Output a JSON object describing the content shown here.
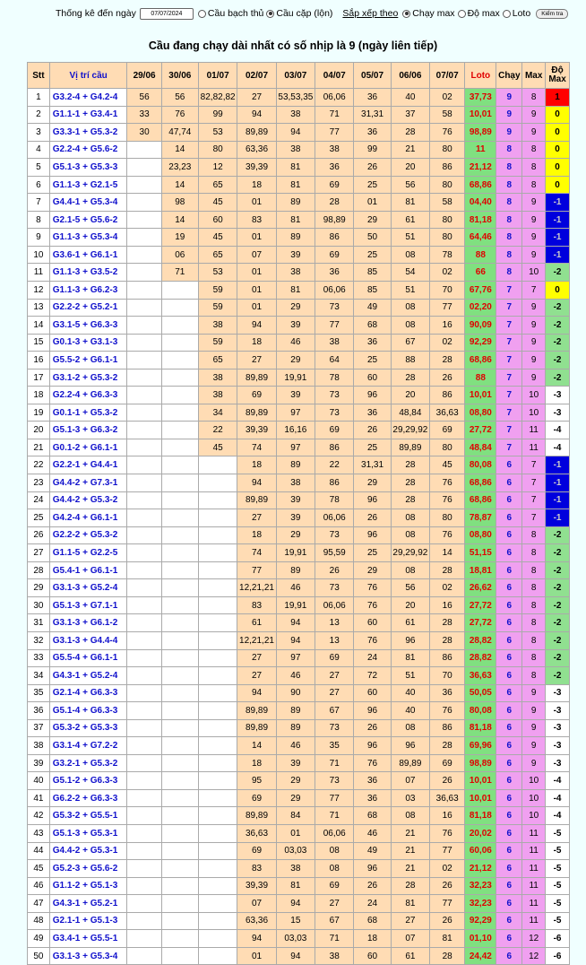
{
  "filter": {
    "label": "Thống kê đến ngày",
    "date": "07/07/2024",
    "mode_options": [
      {
        "label": "Cầu bạch thủ",
        "selected": false
      },
      {
        "label": "Cầu cặp (lộn)",
        "selected": true
      }
    ],
    "sort_label": "Sắp xếp theo",
    "sort_options": [
      {
        "label": "Chạy max",
        "selected": true
      },
      {
        "label": "Độ max",
        "selected": false
      },
      {
        "label": "Loto",
        "selected": false
      }
    ],
    "check_button": "Kiểm tra"
  },
  "title": "Cầu đang chạy dài nhất có số nhịp là 9 (ngày liên tiếp)",
  "headers": [
    "Stt",
    "Vị trí cầu",
    "29/06",
    "30/06",
    "01/07",
    "02/07",
    "03/07",
    "04/07",
    "05/07",
    "06/06",
    "07/07",
    "Loto",
    "Chạy",
    "Max",
    "Độ Max"
  ],
  "rows": [
    {
      "stt": "1",
      "pos": "G3.2-4 + G4.2-4",
      "d": [
        "56",
        "56",
        "82,82,82",
        "27",
        "53,53,35",
        "06,06",
        "36",
        "40",
        "02"
      ],
      "loto": "37,73",
      "chay": "9",
      "max": "8",
      "do": "1"
    },
    {
      "stt": "2",
      "pos": "G1.1-1 + G3.4-1",
      "d": [
        "33",
        "76",
        "99",
        "94",
        "38",
        "71",
        "31,31",
        "37",
        "58"
      ],
      "loto": "10,01",
      "chay": "9",
      "max": "9",
      "do": "0"
    },
    {
      "stt": "3",
      "pos": "G3.3-1 + G5.3-2",
      "d": [
        "30",
        "47,74",
        "53",
        "89,89",
        "94",
        "77",
        "36",
        "28",
        "76"
      ],
      "loto": "98,89",
      "chay": "9",
      "max": "9",
      "do": "0"
    },
    {
      "stt": "4",
      "pos": "G2.2-4 + G5.6-2",
      "d": [
        "",
        "14",
        "80",
        "63,36",
        "38",
        "38",
        "99",
        "21",
        "80"
      ],
      "loto": "11",
      "chay": "8",
      "max": "8",
      "do": "0"
    },
    {
      "stt": "5",
      "pos": "G5.1-3 + G5.3-3",
      "d": [
        "",
        "23,23",
        "12",
        "39,39",
        "81",
        "36",
        "26",
        "20",
        "86"
      ],
      "loto": "21,12",
      "chay": "8",
      "max": "8",
      "do": "0"
    },
    {
      "stt": "6",
      "pos": "G1.1-3 + G2.1-5",
      "d": [
        "",
        "14",
        "65",
        "18",
        "81",
        "69",
        "25",
        "56",
        "80"
      ],
      "loto": "68,86",
      "chay": "8",
      "max": "8",
      "do": "0"
    },
    {
      "stt": "7",
      "pos": "G4.4-1 + G5.3-4",
      "d": [
        "",
        "98",
        "45",
        "01",
        "89",
        "28",
        "01",
        "81",
        "58"
      ],
      "loto": "04,40",
      "chay": "8",
      "max": "9",
      "do": "-1"
    },
    {
      "stt": "8",
      "pos": "G2.1-5 + G5.6-2",
      "d": [
        "",
        "14",
        "60",
        "83",
        "81",
        "98,89",
        "29",
        "61",
        "80"
      ],
      "loto": "81,18",
      "chay": "8",
      "max": "9",
      "do": "-1"
    },
    {
      "stt": "9",
      "pos": "G1.1-3 + G5.3-4",
      "d": [
        "",
        "19",
        "45",
        "01",
        "89",
        "86",
        "50",
        "51",
        "80"
      ],
      "loto": "64,46",
      "chay": "8",
      "max": "9",
      "do": "-1"
    },
    {
      "stt": "10",
      "pos": "G3.6-1 + G6.1-1",
      "d": [
        "",
        "06",
        "65",
        "07",
        "39",
        "69",
        "25",
        "08",
        "78"
      ],
      "loto": "88",
      "chay": "8",
      "max": "9",
      "do": "-1"
    },
    {
      "stt": "11",
      "pos": "G1.1-3 + G3.5-2",
      "d": [
        "",
        "71",
        "53",
        "01",
        "38",
        "36",
        "85",
        "54",
        "02"
      ],
      "loto": "66",
      "chay": "8",
      "max": "10",
      "do": "-2"
    },
    {
      "stt": "12",
      "pos": "G1.1-3 + G6.2-3",
      "d": [
        "",
        "",
        "59",
        "01",
        "81",
        "06,06",
        "85",
        "51",
        "70"
      ],
      "loto": "67,76",
      "chay": "7",
      "max": "7",
      "do": "0"
    },
    {
      "stt": "13",
      "pos": "G2.2-2 + G5.2-1",
      "d": [
        "",
        "",
        "59",
        "01",
        "29",
        "73",
        "49",
        "08",
        "77"
      ],
      "loto": "02,20",
      "chay": "7",
      "max": "9",
      "do": "-2"
    },
    {
      "stt": "14",
      "pos": "G3.1-5 + G6.3-3",
      "d": [
        "",
        "",
        "38",
        "94",
        "39",
        "77",
        "68",
        "08",
        "16"
      ],
      "loto": "90,09",
      "chay": "7",
      "max": "9",
      "do": "-2"
    },
    {
      "stt": "15",
      "pos": "G0.1-3 + G3.1-3",
      "d": [
        "",
        "",
        "59",
        "18",
        "46",
        "38",
        "36",
        "67",
        "02"
      ],
      "loto": "92,29",
      "chay": "7",
      "max": "9",
      "do": "-2"
    },
    {
      "stt": "16",
      "pos": "G5.5-2 + G6.1-1",
      "d": [
        "",
        "",
        "65",
        "27",
        "29",
        "64",
        "25",
        "88",
        "28"
      ],
      "loto": "68,86",
      "chay": "7",
      "max": "9",
      "do": "-2"
    },
    {
      "stt": "17",
      "pos": "G3.1-2 + G5.3-2",
      "d": [
        "",
        "",
        "38",
        "89,89",
        "19,91",
        "78",
        "60",
        "28",
        "26"
      ],
      "loto": "88",
      "chay": "7",
      "max": "9",
      "do": "-2"
    },
    {
      "stt": "18",
      "pos": "G2.2-4 + G6.3-3",
      "d": [
        "",
        "",
        "38",
        "69",
        "39",
        "73",
        "96",
        "20",
        "86"
      ],
      "loto": "10,01",
      "chay": "7",
      "max": "10",
      "do": "-3"
    },
    {
      "stt": "19",
      "pos": "G0.1-1 + G5.3-2",
      "d": [
        "",
        "",
        "34",
        "89,89",
        "97",
        "73",
        "36",
        "48,84",
        "36,63"
      ],
      "loto": "08,80",
      "chay": "7",
      "max": "10",
      "do": "-3"
    },
    {
      "stt": "20",
      "pos": "G5.1-3 + G6.3-2",
      "d": [
        "",
        "",
        "22",
        "39,39",
        "16,16",
        "69",
        "26",
        "29,29,92",
        "69"
      ],
      "loto": "27,72",
      "chay": "7",
      "max": "11",
      "do": "-4"
    },
    {
      "stt": "21",
      "pos": "G0.1-2 + G6.1-1",
      "d": [
        "",
        "",
        "45",
        "74",
        "97",
        "86",
        "25",
        "89,89",
        "80"
      ],
      "loto": "48,84",
      "chay": "7",
      "max": "11",
      "do": "-4"
    },
    {
      "stt": "22",
      "pos": "G2.2-1 + G4.4-1",
      "d": [
        "",
        "",
        "",
        "18",
        "89",
        "22",
        "31,31",
        "28",
        "45"
      ],
      "loto": "80,08",
      "chay": "6",
      "max": "7",
      "do": "-1"
    },
    {
      "stt": "23",
      "pos": "G4.4-2 + G7.3-1",
      "d": [
        "",
        "",
        "",
        "94",
        "38",
        "86",
        "29",
        "28",
        "76"
      ],
      "loto": "68,86",
      "chay": "6",
      "max": "7",
      "do": "-1"
    },
    {
      "stt": "24",
      "pos": "G4.4-2 + G5.3-2",
      "d": [
        "",
        "",
        "",
        "89,89",
        "39",
        "78",
        "96",
        "28",
        "76"
      ],
      "loto": "68,86",
      "chay": "6",
      "max": "7",
      "do": "-1"
    },
    {
      "stt": "25",
      "pos": "G4.2-4 + G6.1-1",
      "d": [
        "",
        "",
        "",
        "27",
        "39",
        "06,06",
        "26",
        "08",
        "80"
      ],
      "loto": "78,87",
      "chay": "6",
      "max": "7",
      "do": "-1"
    },
    {
      "stt": "26",
      "pos": "G2.2-2 + G5.3-2",
      "d": [
        "",
        "",
        "",
        "18",
        "29",
        "73",
        "96",
        "08",
        "76"
      ],
      "loto": "08,80",
      "chay": "6",
      "max": "8",
      "do": "-2"
    },
    {
      "stt": "27",
      "pos": "G1.1-5 + G2.2-5",
      "d": [
        "",
        "",
        "",
        "74",
        "19,91",
        "95,59",
        "25",
        "29,29,92",
        "14"
      ],
      "loto": "51,15",
      "chay": "6",
      "max": "8",
      "do": "-2"
    },
    {
      "stt": "28",
      "pos": "G5.4-1 + G6.1-1",
      "d": [
        "",
        "",
        "",
        "77",
        "89",
        "26",
        "29",
        "08",
        "28"
      ],
      "loto": "18,81",
      "chay": "6",
      "max": "8",
      "do": "-2"
    },
    {
      "stt": "29",
      "pos": "G3.1-3 + G5.2-4",
      "d": [
        "",
        "",
        "",
        "12,21,21",
        "46",
        "73",
        "76",
        "56",
        "02"
      ],
      "loto": "26,62",
      "chay": "6",
      "max": "8",
      "do": "-2"
    },
    {
      "stt": "30",
      "pos": "G5.1-3 + G7.1-1",
      "d": [
        "",
        "",
        "",
        "83",
        "19,91",
        "06,06",
        "76",
        "20",
        "16"
      ],
      "loto": "27,72",
      "chay": "6",
      "max": "8",
      "do": "-2"
    },
    {
      "stt": "31",
      "pos": "G3.1-3 + G6.1-2",
      "d": [
        "",
        "",
        "",
        "61",
        "94",
        "13",
        "60",
        "61",
        "28"
      ],
      "loto": "27,72",
      "chay": "6",
      "max": "8",
      "do": "-2"
    },
    {
      "stt": "32",
      "pos": "G3.1-3 + G4.4-4",
      "d": [
        "",
        "",
        "",
        "12,21,21",
        "94",
        "13",
        "76",
        "96",
        "28"
      ],
      "loto": "28,82",
      "chay": "6",
      "max": "8",
      "do": "-2"
    },
    {
      "stt": "33",
      "pos": "G5.5-4 + G6.1-1",
      "d": [
        "",
        "",
        "",
        "27",
        "97",
        "69",
        "24",
        "81",
        "86"
      ],
      "loto": "28,82",
      "chay": "6",
      "max": "8",
      "do": "-2"
    },
    {
      "stt": "34",
      "pos": "G4.3-1 + G5.2-4",
      "d": [
        "",
        "",
        "",
        "27",
        "46",
        "27",
        "72",
        "51",
        "70"
      ],
      "loto": "36,63",
      "chay": "6",
      "max": "8",
      "do": "-2"
    },
    {
      "stt": "35",
      "pos": "G2.1-4 + G6.3-3",
      "d": [
        "",
        "",
        "",
        "94",
        "90",
        "27",
        "60",
        "40",
        "36"
      ],
      "loto": "50,05",
      "chay": "6",
      "max": "9",
      "do": "-3"
    },
    {
      "stt": "36",
      "pos": "G5.1-4 + G6.3-3",
      "d": [
        "",
        "",
        "",
        "89,89",
        "89",
        "67",
        "96",
        "40",
        "76"
      ],
      "loto": "80,08",
      "chay": "6",
      "max": "9",
      "do": "-3"
    },
    {
      "stt": "37",
      "pos": "G5.3-2 + G5.3-3",
      "d": [
        "",
        "",
        "",
        "89,89",
        "89",
        "73",
        "26",
        "08",
        "86"
      ],
      "loto": "81,18",
      "chay": "6",
      "max": "9",
      "do": "-3"
    },
    {
      "stt": "38",
      "pos": "G3.1-4 + G7.2-2",
      "d": [
        "",
        "",
        "",
        "14",
        "46",
        "35",
        "96",
        "96",
        "28"
      ],
      "loto": "69,96",
      "chay": "6",
      "max": "9",
      "do": "-3"
    },
    {
      "stt": "39",
      "pos": "G3.2-1 + G5.3-2",
      "d": [
        "",
        "",
        "",
        "18",
        "39",
        "71",
        "76",
        "89,89",
        "69"
      ],
      "loto": "98,89",
      "chay": "6",
      "max": "9",
      "do": "-3"
    },
    {
      "stt": "40",
      "pos": "G5.1-2 + G6.3-3",
      "d": [
        "",
        "",
        "",
        "95",
        "29",
        "73",
        "36",
        "07",
        "26"
      ],
      "loto": "10,01",
      "chay": "6",
      "max": "10",
      "do": "-4"
    },
    {
      "stt": "41",
      "pos": "G6.2-2 + G6.3-3",
      "d": [
        "",
        "",
        "",
        "69",
        "29",
        "77",
        "36",
        "03",
        "36,63"
      ],
      "loto": "10,01",
      "chay": "6",
      "max": "10",
      "do": "-4"
    },
    {
      "stt": "42",
      "pos": "G5.3-2 + G5.5-1",
      "d": [
        "",
        "",
        "",
        "89,89",
        "84",
        "71",
        "68",
        "08",
        "16"
      ],
      "loto": "81,18",
      "chay": "6",
      "max": "10",
      "do": "-4"
    },
    {
      "stt": "43",
      "pos": "G5.1-3 + G5.3-1",
      "d": [
        "",
        "",
        "",
        "36,63",
        "01",
        "06,06",
        "46",
        "21",
        "76"
      ],
      "loto": "20,02",
      "chay": "6",
      "max": "11",
      "do": "-5"
    },
    {
      "stt": "44",
      "pos": "G4.4-2 + G5.3-1",
      "d": [
        "",
        "",
        "",
        "69",
        "03,03",
        "08",
        "49",
        "21",
        "77"
      ],
      "loto": "60,06",
      "chay": "6",
      "max": "11",
      "do": "-5"
    },
    {
      "stt": "45",
      "pos": "G5.2-3 + G5.6-2",
      "d": [
        "",
        "",
        "",
        "83",
        "38",
        "08",
        "96",
        "21",
        "02"
      ],
      "loto": "21,12",
      "chay": "6",
      "max": "11",
      "do": "-5"
    },
    {
      "stt": "46",
      "pos": "G1.1-2 + G5.1-3",
      "d": [
        "",
        "",
        "",
        "39,39",
        "81",
        "69",
        "26",
        "28",
        "26"
      ],
      "loto": "32,23",
      "chay": "6",
      "max": "11",
      "do": "-5"
    },
    {
      "stt": "47",
      "pos": "G4.3-1 + G5.2-1",
      "d": [
        "",
        "",
        "",
        "07",
        "94",
        "27",
        "24",
        "81",
        "77"
      ],
      "loto": "32,23",
      "chay": "6",
      "max": "11",
      "do": "-5"
    },
    {
      "stt": "48",
      "pos": "G2.1-1 + G5.1-3",
      "d": [
        "",
        "",
        "",
        "63,36",
        "15",
        "67",
        "68",
        "27",
        "26"
      ],
      "loto": "92,29",
      "chay": "6",
      "max": "11",
      "do": "-5"
    },
    {
      "stt": "49",
      "pos": "G3.4-1 + G5.5-1",
      "d": [
        "",
        "",
        "",
        "94",
        "03,03",
        "71",
        "18",
        "07",
        "81"
      ],
      "loto": "01,10",
      "chay": "6",
      "max": "12",
      "do": "-6"
    },
    {
      "stt": "50",
      "pos": "G3.1-3 + G5.3-4",
      "d": [
        "",
        "",
        "",
        "01",
        "94",
        "38",
        "60",
        "61",
        "28"
      ],
      "loto": "24,42",
      "chay": "6",
      "max": "12",
      "do": "-6"
    }
  ],
  "colors": {
    "cell": "#ffdcb4",
    "loto_bg": "#80e080",
    "loto_text": "#e00000",
    "run_bg": "#f0a0f0",
    "pos_text": "#1010cc",
    "deg_positive": "#ff0000",
    "deg_zero": "#ffff00",
    "deg_minus_one": "#0000dd",
    "deg_minus_two": "#90e090",
    "deg_other": "#ffffff"
  }
}
